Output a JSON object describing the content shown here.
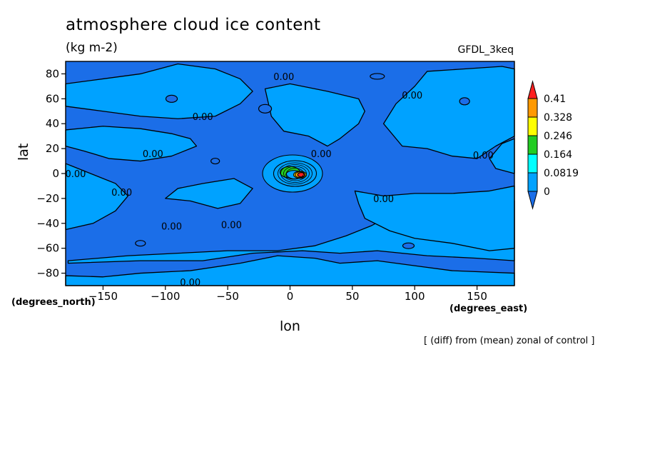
{
  "chart_data": {
    "type": "heatmap",
    "title": "atmosphere cloud ice content",
    "units": "(kg m-2)",
    "model": "GFDL_3keq",
    "xlabel": "lon",
    "ylabel": "lat",
    "x_units": "(degrees_east)",
    "y_units": "(degrees_north)",
    "xlim": [
      -180,
      180
    ],
    "ylim": [
      -90,
      90
    ],
    "x_ticks": [
      -150,
      -100,
      -50,
      0,
      50,
      100,
      150
    ],
    "y_ticks": [
      -80,
      -60,
      -40,
      -20,
      0,
      20,
      40,
      60,
      80
    ],
    "colorbar": {
      "levels": [
        "0.41",
        "0.328",
        "0.246",
        "0.164",
        "0.0819",
        "0"
      ],
      "colors": [
        "#ff2020",
        "#ff9900",
        "#ffff00",
        "#22cc22",
        "#00ffff",
        "#00a2ff",
        "#1b6ee8"
      ]
    },
    "contour_labels": [
      "0.00",
      "0.00",
      "0.00",
      "0.00",
      "0.00",
      "0.00",
      "0.00",
      "0.00",
      "0.00",
      "0.00",
      "0.00",
      "0.00"
    ],
    "footnote": "[ (diff) from (mean) zonal of control ]"
  }
}
